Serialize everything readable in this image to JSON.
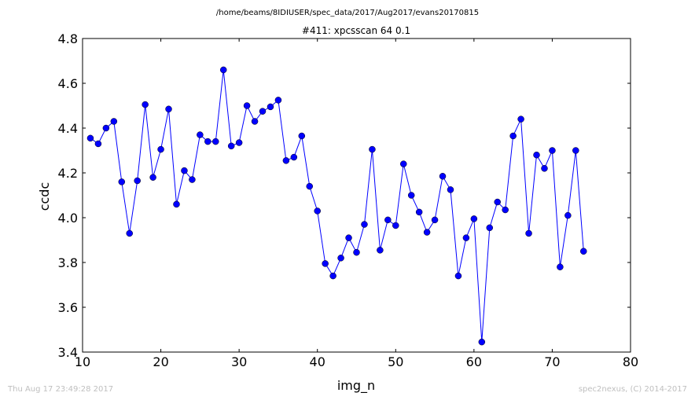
{
  "suptitle": "/home/beams/8IDIUSER/spec_data/2017/Aug2017/evans20170815",
  "footer": {
    "timestamp": "Thu Aug 17 23:49:28 2017",
    "credit": "spec2nexus, (C) 2014-2017"
  },
  "colors": {
    "line": "#0000ff",
    "marker": "#0000ff",
    "marker_edge": "#000000"
  },
  "chart_data": {
    "type": "line",
    "title": "#411: xpcsscan 64 0.1",
    "xlabel": "img_n",
    "ylabel": "ccdc",
    "xlim": [
      10,
      80
    ],
    "ylim": [
      3.4,
      4.8
    ],
    "xticks": [
      "10",
      "20",
      "30",
      "40",
      "50",
      "60",
      "70",
      "80"
    ],
    "yticks": [
      "3.4",
      "3.6",
      "3.8",
      "4.0",
      "4.2",
      "4.4",
      "4.6",
      "4.8"
    ],
    "grid": false,
    "series": [
      {
        "x": [
          11,
          12,
          13,
          14,
          15,
          16,
          17,
          18,
          19,
          20,
          21,
          22,
          23,
          24,
          25,
          26,
          27,
          28,
          29,
          30,
          31,
          32,
          33,
          34,
          35,
          36,
          37,
          38,
          39,
          40,
          41,
          42,
          43,
          44,
          45,
          46,
          47,
          48,
          49,
          50,
          51,
          52,
          53,
          54,
          55,
          56,
          57,
          58,
          59,
          60,
          61,
          62,
          63,
          64,
          65,
          66,
          67,
          68,
          69,
          70,
          71,
          72,
          73,
          74
        ],
        "y": [
          4.355,
          4.33,
          4.4,
          4.43,
          4.16,
          3.93,
          4.165,
          4.505,
          4.18,
          4.305,
          4.485,
          4.06,
          4.21,
          4.17,
          4.37,
          4.34,
          4.34,
          4.66,
          4.32,
          4.335,
          4.5,
          4.43,
          4.475,
          4.495,
          4.525,
          4.255,
          4.27,
          4.365,
          4.14,
          4.03,
          3.795,
          3.74,
          3.82,
          3.91,
          3.845,
          3.97,
          4.305,
          3.855,
          3.99,
          3.965,
          4.24,
          4.1,
          4.025,
          3.935,
          3.99,
          4.185,
          4.125,
          3.74,
          3.91,
          3.995,
          3.445,
          3.955,
          4.07,
          4.035,
          4.365,
          4.44,
          3.93,
          4.28,
          4.22,
          4.3,
          3.78,
          4.01,
          4.3,
          3.85
        ]
      }
    ]
  }
}
